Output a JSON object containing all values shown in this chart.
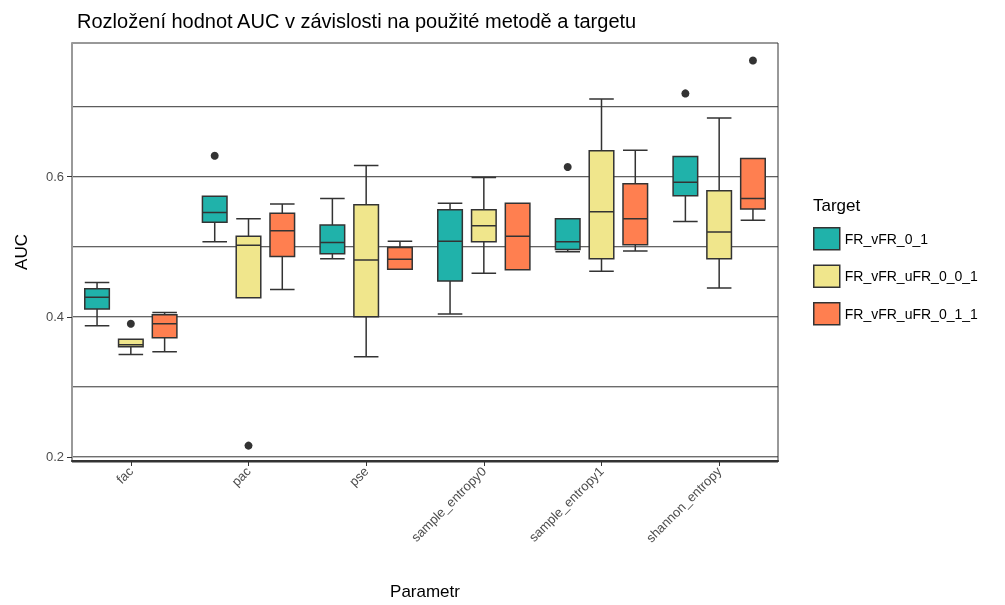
{
  "chart_data": {
    "type": "box",
    "title": "Rozložení hodnot AUC v závislosti na použité metodě a targetu",
    "xlabel": "Parametr",
    "ylabel": "AUC",
    "legend_title": "Target",
    "legend": "right",
    "grid": true,
    "categories": [
      "fac",
      "pac",
      "pse",
      "sample_entropy0",
      "sample_entropy1",
      "shannon_entropy"
    ],
    "ylim": [
      0.194,
      0.791
    ],
    "yticks": [
      0.2,
      {
        "value": 0.3,
        "label": null
      },
      0.4,
      {
        "value": 0.5,
        "label": null
      },
      0.6,
      {
        "value": 0.7,
        "label": null
      }
    ],
    "series": [
      {
        "name": "FR_vFR_0_1",
        "color": "#20b2aa",
        "boxes": [
          {
            "low": 0.387,
            "q1": 0.411,
            "median": 0.428,
            "q3": 0.44,
            "high": 0.449
          },
          {
            "low": 0.507,
            "q1": 0.535,
            "median": 0.549,
            "q3": 0.572,
            "high": 0.572,
            "outliers": [
              0.63
            ]
          },
          {
            "low": 0.483,
            "q1": 0.49,
            "median": 0.506,
            "q3": 0.531,
            "high": 0.569
          },
          {
            "low": 0.404,
            "q1": 0.451,
            "median": 0.508,
            "q3": 0.553,
            "high": 0.562
          },
          {
            "low": 0.493,
            "q1": 0.496,
            "median": 0.507,
            "q3": 0.54,
            "high": 0.54,
            "outliers": [
              0.614
            ]
          },
          {
            "low": 0.536,
            "q1": 0.573,
            "median": 0.592,
            "q3": 0.629,
            "high": 0.629,
            "outliers": [
              0.719
            ]
          }
        ]
      },
      {
        "name": "FR_vFR_uFR_0_0_1",
        "color": "#f0e68c",
        "boxes": [
          {
            "low": 0.346,
            "q1": 0.357,
            "median": 0.36,
            "q3": 0.368,
            "high": 0.368,
            "outliers": [
              0.39
            ]
          },
          {
            "low": 0.427,
            "q1": 0.427,
            "median": 0.502,
            "q3": 0.515,
            "high": 0.54,
            "outliers": [
              0.216
            ]
          },
          {
            "low": 0.343,
            "q1": 0.4,
            "median": 0.481,
            "q3": 0.56,
            "high": 0.616
          },
          {
            "low": 0.462,
            "q1": 0.507,
            "median": 0.53,
            "q3": 0.553,
            "high": 0.599
          },
          {
            "low": 0.465,
            "q1": 0.483,
            "median": 0.55,
            "q3": 0.637,
            "high": 0.711
          },
          {
            "low": 0.441,
            "q1": 0.483,
            "median": 0.521,
            "q3": 0.58,
            "high": 0.684
          }
        ]
      },
      {
        "name": "FR_vFR_uFR_0_1_1",
        "color": "#ff7f50",
        "boxes": [
          {
            "low": 0.35,
            "q1": 0.37,
            "median": 0.39,
            "q3": 0.403,
            "high": 0.406
          },
          {
            "low": 0.439,
            "q1": 0.486,
            "median": 0.523,
            "q3": 0.548,
            "high": 0.561
          },
          {
            "low": 0.468,
            "q1": 0.468,
            "median": 0.482,
            "q3": 0.499,
            "high": 0.508
          },
          {
            "low": 0.467,
            "q1": 0.467,
            "median": 0.515,
            "q3": 0.562,
            "high": 0.562
          },
          {
            "low": 0.494,
            "q1": 0.503,
            "median": 0.54,
            "q3": 0.59,
            "high": 0.638
          },
          {
            "low": 0.538,
            "q1": 0.554,
            "median": 0.569,
            "q3": 0.626,
            "high": 0.626,
            "outliers": [
              0.766
            ]
          }
        ]
      }
    ]
  }
}
